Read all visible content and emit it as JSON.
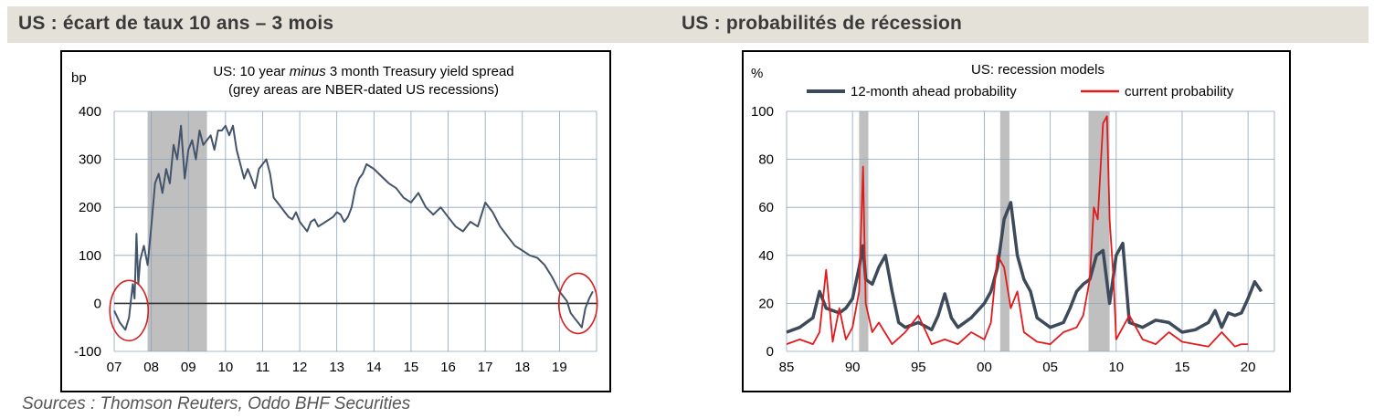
{
  "panels": {
    "left_title": "US : écart de taux 10 ans – 3 mois",
    "right_title": "US : probabilités de récession"
  },
  "sources": "Sources : Thomson Reuters, Oddo BHF Securities",
  "colors": {
    "band": "#e4e1d9",
    "spread_line": "#44546a",
    "prob12_line": "#3d4a5a",
    "current_line": "#e31a1c",
    "recession_fill": "#bfbfbf",
    "circle": "#d42020"
  },
  "chart_data": [
    {
      "type": "line",
      "title_line1_pre": "US: 10 year ",
      "title_line1_em": "minus",
      "title_line1_post": " 3 month Treasury yield spread",
      "title_line2": "(grey areas are NBER-dated US recessions)",
      "xlabel": "",
      "ylabel": "bp",
      "xlim": [
        2007,
        2020.0
      ],
      "ylim": [
        -100,
        400
      ],
      "grid": true,
      "zero_line": true,
      "xticks": [
        {
          "value": 2007,
          "label": "07"
        },
        {
          "value": 2008,
          "label": "08"
        },
        {
          "value": 2009,
          "label": "09"
        },
        {
          "value": 2010,
          "label": "10"
        },
        {
          "value": 2011,
          "label": "11"
        },
        {
          "value": 2012,
          "label": "12"
        },
        {
          "value": 2013,
          "label": "13"
        },
        {
          "value": 2014,
          "label": "14"
        },
        {
          "value": 2015,
          "label": "15"
        },
        {
          "value": 2016,
          "label": "16"
        },
        {
          "value": 2017,
          "label": "17"
        },
        {
          "value": 2018,
          "label": "18"
        },
        {
          "value": 2019,
          "label": "19"
        }
      ],
      "yticks": [
        400,
        300,
        200,
        100,
        0,
        -100
      ],
      "recessions": [
        [
          2007.9,
          2009.5
        ]
      ],
      "highlights": [
        {
          "label": "2007 inversion",
          "x": 2007.4,
          "y": -15
        },
        {
          "label": "2019 inversion",
          "x": 2019.5,
          "y": 0
        }
      ],
      "series": [
        {
          "x": [
            2007.0,
            2007.15,
            2007.3,
            2007.4,
            2007.5,
            2007.55,
            2007.6,
            2007.65,
            2007.7,
            2007.8,
            2007.9,
            2008.0,
            2008.1,
            2008.2,
            2008.3,
            2008.4,
            2008.5,
            2008.6,
            2008.7,
            2008.8,
            2008.9,
            2009.0,
            2009.1,
            2009.2,
            2009.3,
            2009.4,
            2009.5,
            2009.6,
            2009.7,
            2009.8,
            2009.9,
            2010.0,
            2010.1,
            2010.2,
            2010.3,
            2010.4,
            2010.5,
            2010.6,
            2010.7,
            2010.8,
            2010.9,
            2011.0,
            2011.1,
            2011.2,
            2011.3,
            2011.4,
            2011.5,
            2011.6,
            2011.7,
            2011.8,
            2011.9,
            2012.0,
            2012.1,
            2012.2,
            2012.3,
            2012.4,
            2012.5,
            2012.6,
            2012.7,
            2012.8,
            2012.9,
            2013.0,
            2013.1,
            2013.2,
            2013.3,
            2013.4,
            2013.5,
            2013.6,
            2013.7,
            2013.8,
            2013.9,
            2014.0,
            2014.2,
            2014.4,
            2014.6,
            2014.8,
            2015.0,
            2015.2,
            2015.4,
            2015.6,
            2015.8,
            2016.0,
            2016.2,
            2016.4,
            2016.6,
            2016.8,
            2017.0,
            2017.2,
            2017.4,
            2017.6,
            2017.8,
            2018.0,
            2018.2,
            2018.4,
            2018.6,
            2018.8,
            2019.0,
            2019.1,
            2019.2,
            2019.3,
            2019.4,
            2019.5,
            2019.6,
            2019.7,
            2019.8,
            2019.9
          ],
          "values": [
            -15,
            -40,
            -55,
            -30,
            40,
            10,
            145,
            40,
            90,
            120,
            80,
            160,
            250,
            270,
            230,
            280,
            250,
            330,
            300,
            370,
            260,
            320,
            340,
            300,
            360,
            330,
            340,
            350,
            320,
            360,
            360,
            370,
            350,
            370,
            320,
            290,
            260,
            280,
            260,
            240,
            280,
            290,
            300,
            270,
            220,
            210,
            200,
            190,
            180,
            175,
            190,
            170,
            160,
            150,
            170,
            175,
            160,
            165,
            170,
            175,
            180,
            190,
            185,
            170,
            180,
            200,
            240,
            260,
            270,
            290,
            285,
            280,
            265,
            250,
            240,
            220,
            210,
            230,
            200,
            185,
            200,
            180,
            160,
            150,
            170,
            160,
            210,
            190,
            160,
            140,
            120,
            110,
            100,
            95,
            80,
            55,
            25,
            15,
            5,
            -20,
            -30,
            -40,
            -50,
            -10,
            10,
            25
          ]
        }
      ]
    },
    {
      "type": "line",
      "title": "US: recession models",
      "xlabel": "",
      "ylabel": "%",
      "xlim": [
        1985,
        2022
      ],
      "ylim": [
        0,
        100
      ],
      "grid": true,
      "legend": "top",
      "xticks": [
        {
          "value": 1985,
          "label": "85"
        },
        {
          "value": 1990,
          "label": "90"
        },
        {
          "value": 1995,
          "label": "95"
        },
        {
          "value": 2000,
          "label": "00"
        },
        {
          "value": 2005,
          "label": "05"
        },
        {
          "value": 2010,
          "label": "10"
        },
        {
          "value": 2015,
          "label": "15"
        },
        {
          "value": 2020,
          "label": "20"
        }
      ],
      "yticks": [
        100,
        80,
        60,
        40,
        20,
        0
      ],
      "recessions": [
        [
          1990.5,
          1991.2
        ],
        [
          2001.2,
          2001.9
        ],
        [
          2007.9,
          2009.5
        ]
      ],
      "series": [
        {
          "name": "12-month ahead probability",
          "x": [
            1985.0,
            1986.0,
            1987.0,
            1987.5,
            1988.0,
            1988.5,
            1989.0,
            1989.5,
            1990.0,
            1990.5,
            1990.8,
            1991.0,
            1991.5,
            1992.0,
            1992.5,
            1993.0,
            1993.5,
            1994.0,
            1995.0,
            1996.0,
            1996.5,
            1997.0,
            1997.5,
            1998.0,
            1999.0,
            2000.0,
            2000.5,
            2001.0,
            2001.5,
            2002.0,
            2002.5,
            2003.0,
            2003.5,
            2004.0,
            2005.0,
            2006.0,
            2006.5,
            2007.0,
            2007.5,
            2008.0,
            2008.5,
            2009.0,
            2009.5,
            2010.0,
            2010.5,
            2011.0,
            2012.0,
            2013.0,
            2014.0,
            2015.0,
            2016.0,
            2017.0,
            2017.5,
            2018.0,
            2018.5,
            2019.0,
            2019.5,
            2020.0,
            2020.5,
            2021.0
          ],
          "values": [
            8,
            10,
            14,
            25,
            18,
            17,
            16,
            18,
            22,
            35,
            44,
            30,
            28,
            35,
            40,
            25,
            12,
            10,
            12,
            9,
            15,
            24,
            14,
            10,
            14,
            20,
            25,
            35,
            55,
            62,
            40,
            30,
            25,
            14,
            10,
            12,
            18,
            25,
            28,
            30,
            40,
            42,
            20,
            40,
            45,
            12,
            10,
            13,
            12,
            8,
            9,
            12,
            17,
            10,
            16,
            15,
            16,
            22,
            29,
            25
          ]
        },
        {
          "name": "current probability",
          "x": [
            1985.0,
            1986.0,
            1987.0,
            1987.5,
            1988.0,
            1988.5,
            1989.0,
            1989.5,
            1990.0,
            1990.5,
            1990.8,
            1991.0,
            1991.5,
            1992.0,
            1993.0,
            1994.0,
            1995.0,
            1996.0,
            1997.0,
            1998.0,
            1999.0,
            2000.0,
            2000.5,
            2001.0,
            2001.5,
            2002.0,
            2002.5,
            2003.0,
            2004.0,
            2005.0,
            2006.0,
            2007.0,
            2007.5,
            2008.0,
            2008.3,
            2008.6,
            2009.0,
            2009.3,
            2009.5,
            2009.8,
            2010.0,
            2011.0,
            2012.0,
            2013.0,
            2014.0,
            2015.0,
            2016.0,
            2017.0,
            2018.0,
            2019.0,
            2019.5,
            2020.0
          ],
          "values": [
            3,
            5,
            3,
            8,
            34,
            4,
            18,
            5,
            10,
            25,
            77,
            20,
            8,
            12,
            3,
            8,
            15,
            3,
            5,
            3,
            8,
            5,
            12,
            40,
            35,
            18,
            25,
            8,
            4,
            3,
            8,
            10,
            15,
            30,
            60,
            55,
            95,
            98,
            55,
            30,
            5,
            15,
            5,
            3,
            8,
            4,
            3,
            2,
            8,
            2,
            3,
            3
          ]
        }
      ]
    }
  ]
}
